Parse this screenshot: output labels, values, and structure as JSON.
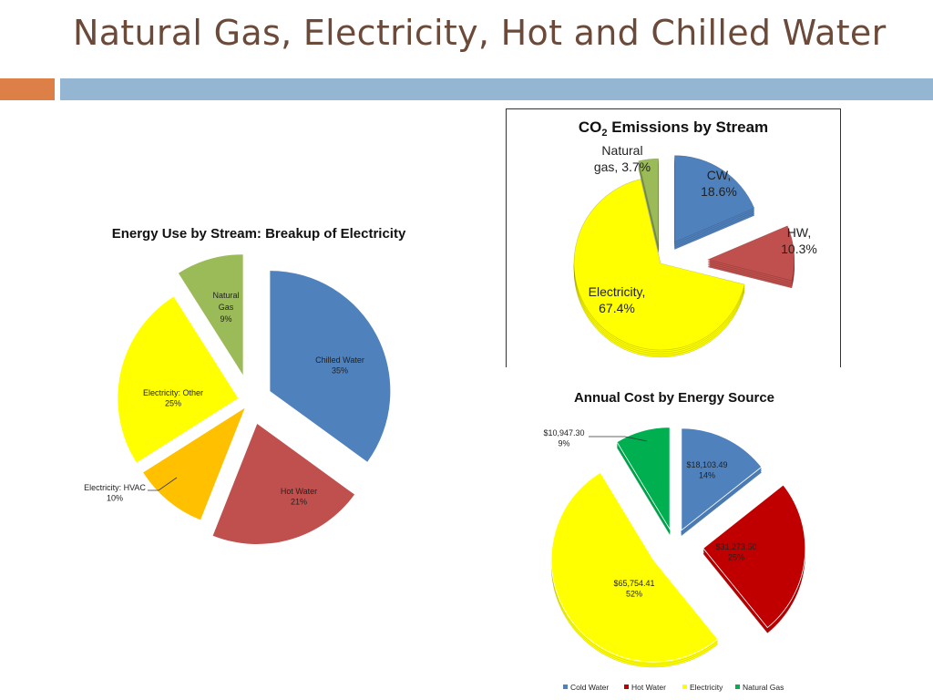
{
  "slide": {
    "title": "Natural Gas, Electricity, Hot and Chilled Water"
  },
  "chart_data": [
    {
      "type": "pie",
      "title": "Energy Use by Stream: Breakup of Electricity",
      "slices": [
        {
          "name": "Chilled Water",
          "value": 35,
          "label": "35%",
          "color": "#4f81bd"
        },
        {
          "name": "Hot Water",
          "value": 21,
          "label": "21%",
          "color": "#c0504d"
        },
        {
          "name": "Electricity: HVAC",
          "value": 10,
          "label": "10%",
          "color": "#ffc000"
        },
        {
          "name": "Electricity: Other",
          "value": 25,
          "label": "25%",
          "color": "#ffff00"
        },
        {
          "name": "Natural Gas",
          "value": 9,
          "label": "9%",
          "color": "#9bbb59"
        }
      ]
    },
    {
      "type": "pie",
      "title_main": "CO",
      "title_sub": "2",
      "title_rest": " Emissions by Stream",
      "slices": [
        {
          "name": "CW,",
          "value": 18.6,
          "label": "18.6%",
          "color": "#4f81bd"
        },
        {
          "name": "HW,",
          "value": 10.3,
          "label": "10.3%",
          "color": "#c0504d"
        },
        {
          "name": "Electricity,",
          "value": 67.4,
          "label": "67.4%",
          "color": "#ffff00"
        },
        {
          "name": "Natural",
          "name2": "gas,",
          "value": 3.7,
          "label": "3.7%",
          "color": "#9bbb59"
        }
      ]
    },
    {
      "type": "pie",
      "title": "Annual Cost by Energy Source",
      "slices": [
        {
          "name": "Cold Water",
          "value": 18103.49,
          "amount": "$18,103.49",
          "label": "14%",
          "color": "#4f81bd"
        },
        {
          "name": "Hot Water",
          "value": 31273.5,
          "amount": "$31,273.50",
          "label": "25%",
          "color": "#c00000"
        },
        {
          "name": "Electricity",
          "value": 65754.41,
          "amount": "$65,754.41",
          "label": "52%",
          "color": "#ffff00"
        },
        {
          "name": "Natural Gas",
          "value": 10947.3,
          "amount": "$10,947.30",
          "label": "9%",
          "color": "#00b050"
        }
      ],
      "legend": [
        "Cold Water",
        "Hot Water",
        "Electricity",
        "Natural Gas"
      ],
      "legend_position": "bottom"
    }
  ]
}
